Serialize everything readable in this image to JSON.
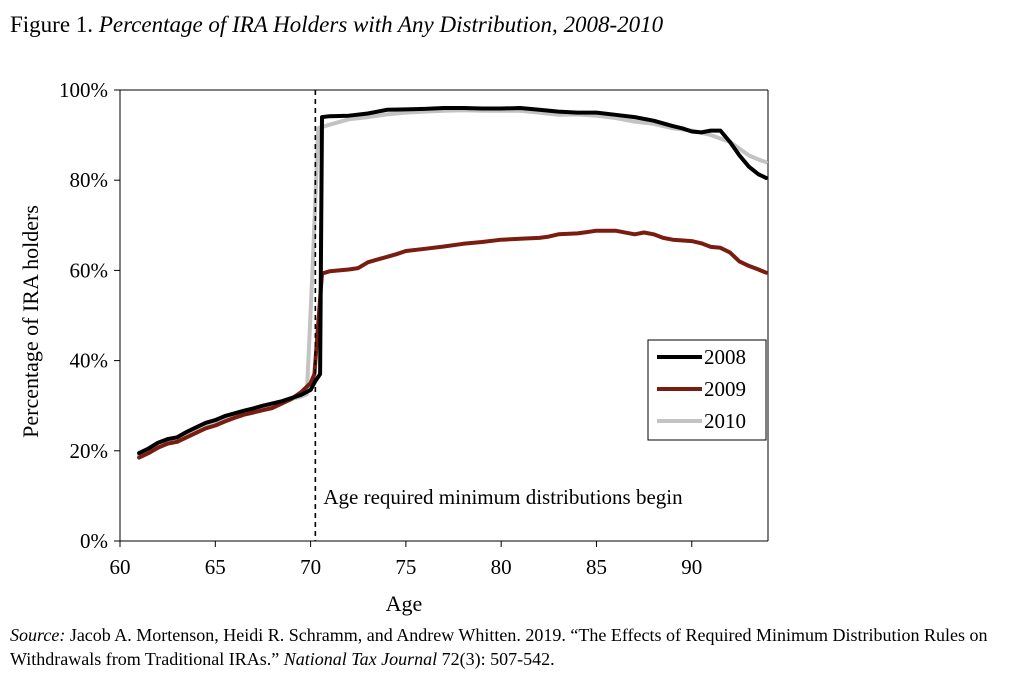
{
  "figure": {
    "label": "Figure 1.",
    "title": "Percentage of IRA Holders with Any Distribution, 2008-2010"
  },
  "source": {
    "label": "Source:",
    "text_before": " Jacob A. Mortenson, Heidi R. Schramm, and Andrew Whitten. 2019. “The Effects of Required Minimum Distribution Rules on Withdrawals from Traditional IRAs.” ",
    "journal": "National Tax Journal",
    "text_after": " 72(3): 507-542."
  },
  "chart_data": {
    "type": "line",
    "xlabel": "Age",
    "ylabel": "Percentage of IRA holders",
    "xlim": [
      60,
      94
    ],
    "ylim": [
      0,
      100
    ],
    "x_ticks": [
      60,
      65,
      70,
      75,
      80,
      85,
      90
    ],
    "y_ticks": [
      0,
      20,
      40,
      60,
      80,
      100
    ],
    "y_tick_format": "percent",
    "grid": false,
    "legend": "center-right",
    "annotation": {
      "text": "Age required minimum distributions begin",
      "x": 70.25,
      "style": "dashed-vertical-line"
    },
    "series": [
      {
        "name": "2008",
        "color": "#000000",
        "points": [
          [
            61,
            19.5
          ],
          [
            61.5,
            20.5
          ],
          [
            62,
            21.8
          ],
          [
            62.5,
            22.6
          ],
          [
            63,
            23.0
          ],
          [
            63.5,
            24.2
          ],
          [
            64,
            25.2
          ],
          [
            64.5,
            26.2
          ],
          [
            65,
            26.8
          ],
          [
            65.5,
            27.7
          ],
          [
            66,
            28.3
          ],
          [
            66.5,
            28.9
          ],
          [
            67,
            29.4
          ],
          [
            67.5,
            30.0
          ],
          [
            68,
            30.5
          ],
          [
            68.5,
            31.0
          ],
          [
            69,
            31.7
          ],
          [
            69.5,
            32.4
          ],
          [
            70,
            33.5
          ],
          [
            70.25,
            35.5
          ],
          [
            70.5,
            37.0
          ],
          [
            70.6,
            94.0
          ],
          [
            71,
            94.2
          ],
          [
            72,
            94.3
          ],
          [
            73,
            94.8
          ],
          [
            74,
            95.6
          ],
          [
            75,
            95.7
          ],
          [
            76,
            95.8
          ],
          [
            77,
            96.0
          ],
          [
            78,
            96.0
          ],
          [
            79,
            95.9
          ],
          [
            80,
            95.9
          ],
          [
            81,
            96.0
          ],
          [
            82,
            95.6
          ],
          [
            83,
            95.2
          ],
          [
            84,
            95.0
          ],
          [
            85,
            95.0
          ],
          [
            86,
            94.5
          ],
          [
            87,
            94.0
          ],
          [
            88,
            93.2
          ],
          [
            89,
            92.0
          ],
          [
            89.5,
            91.5
          ],
          [
            90,
            90.8
          ],
          [
            90.5,
            90.6
          ],
          [
            91,
            91.0
          ],
          [
            91.5,
            91.0
          ],
          [
            92,
            88.5
          ],
          [
            92.5,
            85.5
          ],
          [
            93,
            83.0
          ],
          [
            93.5,
            81.3
          ],
          [
            93.9,
            80.5
          ]
        ]
      },
      {
        "name": "2009",
        "color": "#7b1c10",
        "points": [
          [
            61,
            18.5
          ],
          [
            61.5,
            19.5
          ],
          [
            62,
            20.7
          ],
          [
            62.5,
            21.6
          ],
          [
            63,
            22.0
          ],
          [
            63.5,
            23.0
          ],
          [
            64,
            24.0
          ],
          [
            64.5,
            25.0
          ],
          [
            65,
            25.6
          ],
          [
            65.5,
            26.5
          ],
          [
            66,
            27.3
          ],
          [
            66.5,
            28.0
          ],
          [
            67,
            28.5
          ],
          [
            67.5,
            29.0
          ],
          [
            68,
            29.5
          ],
          [
            68.5,
            30.5
          ],
          [
            69,
            31.5
          ],
          [
            69.5,
            33.0
          ],
          [
            70,
            35.0
          ],
          [
            70.2,
            37.0
          ],
          [
            70.6,
            59.3
          ],
          [
            71,
            59.8
          ],
          [
            71.5,
            60.0
          ],
          [
            72,
            60.2
          ],
          [
            72.5,
            60.5
          ],
          [
            73,
            61.8
          ],
          [
            73.5,
            62.4
          ],
          [
            74,
            63.0
          ],
          [
            74.5,
            63.6
          ],
          [
            75,
            64.3
          ],
          [
            76,
            64.8
          ],
          [
            77,
            65.3
          ],
          [
            78,
            65.9
          ],
          [
            79,
            66.3
          ],
          [
            80,
            66.8
          ],
          [
            81,
            67.0
          ],
          [
            82,
            67.2
          ],
          [
            82.5,
            67.5
          ],
          [
            83,
            68.0
          ],
          [
            84,
            68.2
          ],
          [
            84.5,
            68.5
          ],
          [
            85,
            68.8
          ],
          [
            86,
            68.8
          ],
          [
            87,
            68.0
          ],
          [
            87.5,
            68.4
          ],
          [
            88,
            68.0
          ],
          [
            88.5,
            67.2
          ],
          [
            89,
            66.8
          ],
          [
            90,
            66.5
          ],
          [
            90.5,
            66.0
          ],
          [
            91,
            65.2
          ],
          [
            91.5,
            65.0
          ],
          [
            92,
            64.0
          ],
          [
            92.5,
            62.0
          ],
          [
            93,
            61.0
          ],
          [
            93.5,
            60.2
          ],
          [
            93.9,
            59.5
          ]
        ]
      },
      {
        "name": "2010",
        "color": "#c3c3c3",
        "points": [
          [
            61,
            19.0
          ],
          [
            61.5,
            20.5
          ],
          [
            62,
            21.8
          ],
          [
            62.5,
            22.4
          ],
          [
            63,
            22.8
          ],
          [
            63.5,
            23.7
          ],
          [
            64,
            24.6
          ],
          [
            64.5,
            25.5
          ],
          [
            65,
            26.2
          ],
          [
            65.5,
            27.0
          ],
          [
            66,
            27.6
          ],
          [
            66.5,
            28.4
          ],
          [
            67,
            29.0
          ],
          [
            67.5,
            29.7
          ],
          [
            68,
            30.3
          ],
          [
            68.5,
            30.9
          ],
          [
            69,
            31.5
          ],
          [
            69.5,
            32.0
          ],
          [
            69.8,
            32.5
          ],
          [
            70.1,
            60.0
          ],
          [
            70.4,
            91.5
          ],
          [
            71,
            92.3
          ],
          [
            72,
            93.5
          ],
          [
            73,
            94.0
          ],
          [
            74,
            94.6
          ],
          [
            75,
            95.0
          ],
          [
            76,
            95.2
          ],
          [
            77,
            95.4
          ],
          [
            78,
            95.5
          ],
          [
            79,
            95.4
          ],
          [
            80,
            95.4
          ],
          [
            81,
            95.4
          ],
          [
            82,
            95.0
          ],
          [
            83,
            94.5
          ],
          [
            84,
            94.6
          ],
          [
            85,
            94.3
          ],
          [
            86,
            93.8
          ],
          [
            87,
            93.0
          ],
          [
            88,
            92.5
          ],
          [
            89,
            91.5
          ],
          [
            90,
            91.0
          ],
          [
            91,
            90.0
          ],
          [
            92,
            88.5
          ],
          [
            92.5,
            87.0
          ],
          [
            93,
            85.5
          ],
          [
            93.5,
            84.6
          ],
          [
            93.9,
            84.0
          ]
        ]
      }
    ]
  }
}
